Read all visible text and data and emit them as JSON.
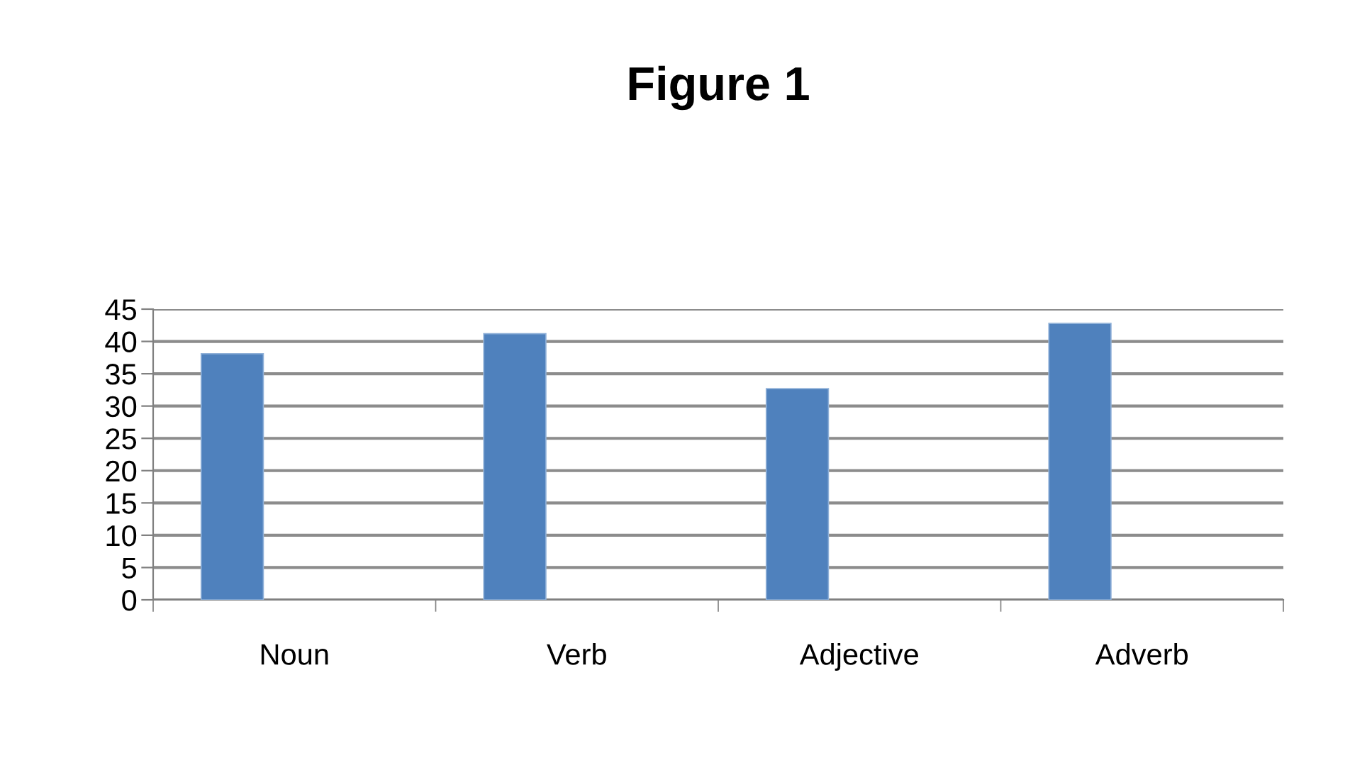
{
  "chart_data": {
    "type": "bar",
    "title": "Figure 1",
    "categories": [
      "Noun",
      "Verb",
      "Adjective",
      "Adverb"
    ],
    "values": [
      38.1,
      41.2,
      32.7,
      42.8
    ],
    "color": "#4f81bd",
    "ylim": [
      0,
      45
    ],
    "yticks": [
      0,
      5,
      10,
      15,
      20,
      25,
      30,
      35,
      40,
      45
    ],
    "grid": "y",
    "legend": false
  }
}
